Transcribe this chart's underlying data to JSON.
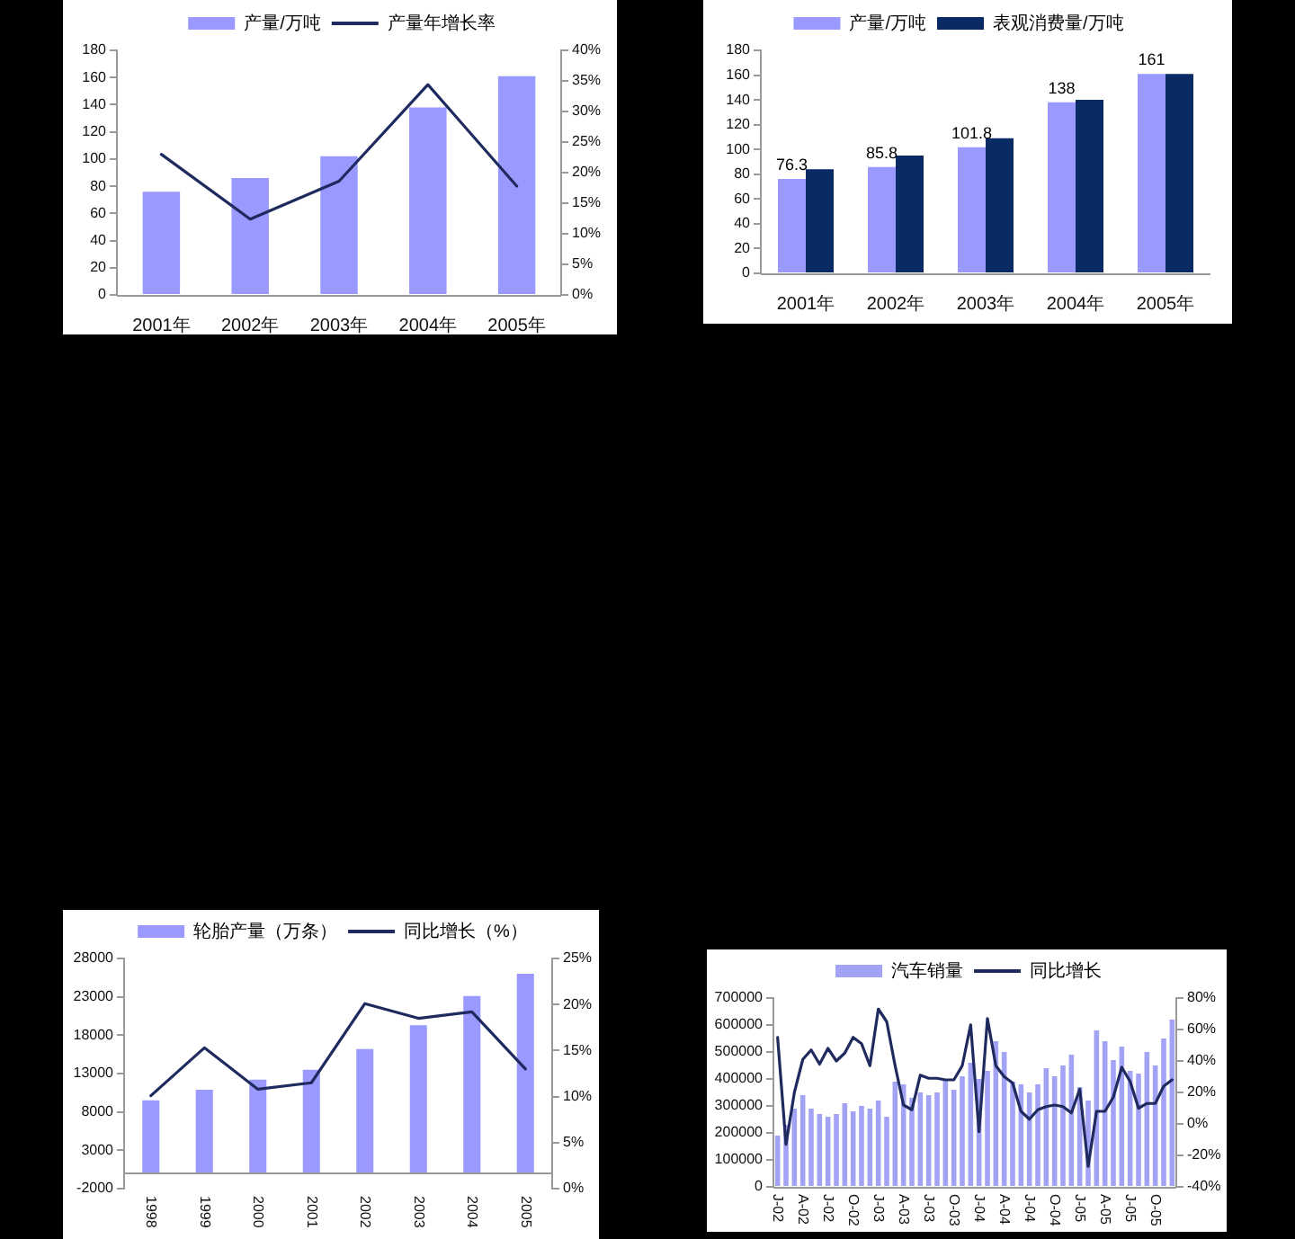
{
  "chart_data": [
    {
      "type": "bar",
      "categories": [
        "2001年",
        "2002年",
        "2003年",
        "2004年",
        "2005年"
      ],
      "series": [
        {
          "name": "产量/万吨",
          "color": "#9999ff",
          "values": [
            76,
            86,
            102,
            138,
            161
          ]
        },
        {
          "name": "产量年增长率",
          "type": "line",
          "axis": "y2",
          "color": "#1f2a5e",
          "values": [
            23,
            12.4,
            18.6,
            34.4,
            17.8
          ]
        }
      ],
      "ylim": [
        0,
        180
      ],
      "yticks": [
        0,
        20,
        40,
        60,
        80,
        100,
        120,
        140,
        160,
        180
      ],
      "y2lim": [
        0,
        40
      ],
      "y2ticks": [
        {
          "value": 0,
          "label": "0%"
        },
        {
          "value": 5,
          "label": "5%"
        },
        {
          "value": 10,
          "label": "10%"
        },
        {
          "value": 15,
          "label": "15%"
        },
        {
          "value": 20,
          "label": "20%"
        },
        {
          "value": 25,
          "label": "25%"
        },
        {
          "value": 30,
          "label": "30%"
        },
        {
          "value": 35,
          "label": "35%"
        },
        {
          "value": 40,
          "label": "40%"
        }
      ],
      "legend": "top"
    },
    {
      "type": "bar",
      "categories": [
        "2001年",
        "2002年",
        "2003年",
        "2004年",
        "2005年"
      ],
      "series": [
        {
          "name": "产量/万吨",
          "color": "#9999ff",
          "values": [
            76.3,
            85.8,
            101.8,
            138,
            161
          ],
          "value_labels": [
            "76.3",
            "85.8",
            "101.8",
            "138",
            "161"
          ]
        },
        {
          "name": "表观消费量/万吨",
          "color": "#0a2a66",
          "values": [
            84,
            95,
            109,
            140,
            161
          ]
        }
      ],
      "ylim": [
        0,
        180
      ],
      "yticks": [
        0,
        20,
        40,
        60,
        80,
        100,
        120,
        140,
        160,
        180
      ],
      "legend": "top"
    },
    {
      "type": "bar",
      "categories": [
        "1998",
        "1999",
        "2000",
        "2001",
        "2002",
        "2003",
        "2004",
        "2005"
      ],
      "series": [
        {
          "name": "轮胎产量（万条）",
          "color": "#9999ff",
          "values": [
            9500,
            10900,
            12200,
            13500,
            16200,
            19300,
            23100,
            26000
          ]
        },
        {
          "name": "同比增长（%）",
          "type": "line",
          "axis": "y2",
          "color": "#1f2a5e",
          "values": [
            10.1,
            15.3,
            10.8,
            11.5,
            20.1,
            18.5,
            19.2,
            13
          ]
        }
      ],
      "ylim": [
        -2000,
        28000
      ],
      "yticks": [
        -2000,
        3000,
        8000,
        13000,
        18000,
        23000,
        28000
      ],
      "y2lim": [
        0,
        25
      ],
      "y2ticks": [
        {
          "value": 0,
          "label": "0%"
        },
        {
          "value": 5,
          "label": "5%"
        },
        {
          "value": 10,
          "label": "10%"
        },
        {
          "value": 15,
          "label": "15%"
        },
        {
          "value": 20,
          "label": "20%"
        },
        {
          "value": 25,
          "label": "25%"
        }
      ],
      "legend": "top"
    },
    {
      "type": "bar",
      "categories": [
        "J-02",
        null,
        null,
        "A-02",
        null,
        null,
        "J-02",
        null,
        null,
        "O-02",
        null,
        null,
        "J-03",
        null,
        null,
        "A-03",
        null,
        null,
        "J-03",
        null,
        null,
        "O-03",
        null,
        null,
        "J-04",
        null,
        null,
        "A-04",
        null,
        null,
        "J-04",
        null,
        null,
        "O-04",
        null,
        null,
        "J-05",
        null,
        null,
        "A-05",
        null,
        null,
        "J-05",
        null,
        null,
        "O-05",
        null,
        null
      ],
      "series": [
        {
          "name": "汽车销量",
          "color": "#a3a3f5",
          "values": [
            190000,
            230000,
            290000,
            340000,
            290000,
            270000,
            260000,
            270000,
            310000,
            280000,
            300000,
            290000,
            320000,
            260000,
            390000,
            380000,
            330000,
            350000,
            340000,
            350000,
            400000,
            360000,
            410000,
            460000,
            400000,
            430000,
            540000,
            500000,
            390000,
            380000,
            350000,
            380000,
            440000,
            410000,
            450000,
            490000,
            370000,
            320000,
            580000,
            540000,
            470000,
            520000,
            430000,
            420000,
            500000,
            450000,
            550000,
            620000
          ]
        },
        {
          "name": "同比增长",
          "type": "line",
          "axis": "y2",
          "color": "#1f2a5e",
          "values": [
            55,
            -13,
            20,
            41,
            47,
            38,
            48,
            40,
            45,
            55,
            51,
            37,
            73,
            65,
            37,
            12,
            9,
            31,
            29,
            29,
            28,
            28,
            37,
            63,
            -5,
            67,
            37,
            30,
            26,
            8,
            3,
            9,
            11,
            12,
            11,
            7,
            22,
            -27,
            8,
            8,
            17,
            36,
            27,
            10,
            13,
            13,
            24,
            28
          ]
        }
      ],
      "ylim": [
        0,
        700000
      ],
      "yticks": [
        0,
        100000,
        200000,
        300000,
        400000,
        500000,
        600000,
        700000
      ],
      "y2lim": [
        -40,
        80
      ],
      "y2ticks": [
        {
          "value": -40,
          "label": "-40%"
        },
        {
          "value": -20,
          "label": "-20%"
        },
        {
          "value": 0,
          "label": "0%"
        },
        {
          "value": 20,
          "label": "20%"
        },
        {
          "value": 40,
          "label": "40%"
        },
        {
          "value": 60,
          "label": "60%"
        },
        {
          "value": 80,
          "label": "80%"
        }
      ],
      "legend": "top"
    }
  ]
}
